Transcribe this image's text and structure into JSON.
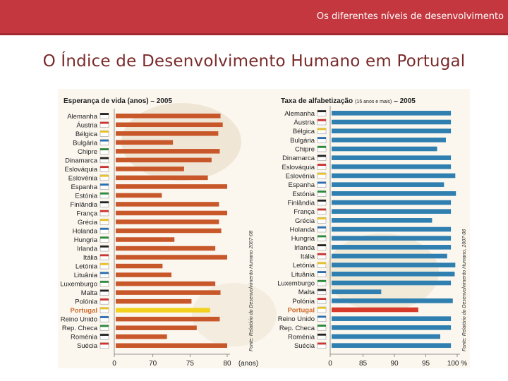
{
  "header": {
    "title": "Os diferentes níveis de desenvolvimento"
  },
  "slide": {
    "title": "O Índice de Desenvolvimento Humano em Portugal"
  },
  "colors": {
    "header_bg": "#c4373f",
    "title_text": "#7a2a2a",
    "life_bar": "#c8582a",
    "portugal_bar_left": "#f2d21e",
    "literacy_bar": "#2f7fb0",
    "portugal_bar_right": "#d63a2a",
    "portugal_label": "#d06a2a"
  },
  "chart_data": [
    {
      "type": "bar",
      "orientation": "horizontal",
      "title": "Esperança de vida (anos) – 2005",
      "categories": [
        "Alemanha",
        "Áustria",
        "Bélgica",
        "Bulgária",
        "Chipre",
        "Dinamarca",
        "Eslováquia",
        "Eslovénia",
        "Espanha",
        "Estónia",
        "Finlândia",
        "França",
        "Grécia",
        "Holanda",
        "Hungria",
        "Irlanda",
        "Itália",
        "Letónia",
        "Lituânia",
        "Luxemburgo",
        "Malta",
        "Polónia",
        "Portugal",
        "Reino Unido",
        "Rep. Checa",
        "Roménia",
        "Suécia"
      ],
      "values": [
        79.1,
        79.4,
        78.8,
        72.7,
        79.0,
        77.9,
        74.2,
        77.4,
        80.5,
        71.2,
        78.9,
        80.2,
        78.9,
        79.2,
        72.9,
        78.4,
        80.3,
        71.3,
        72.5,
        78.4,
        79.1,
        75.2,
        77.7,
        79.0,
        75.9,
        71.9,
        80.5
      ],
      "highlight": "Portugal",
      "xlim": [
        65,
        80
      ],
      "xticks": [
        "0",
        "70",
        "75",
        "80"
      ],
      "xlabel": "(anos)",
      "source": "Fonte: Relatório do Desenvolvimento Humano 2007-08"
    },
    {
      "type": "bar",
      "orientation": "horizontal",
      "title": "Taxa de alfabetização",
      "title_note": "(15 anos e mais)",
      "title_year": "– 2005",
      "categories": [
        "Alemanha",
        "Áustria",
        "Bélgica",
        "Bulgária",
        "Chipre",
        "Dinamarca",
        "Eslováquia",
        "Eslovénia",
        "Espanha",
        "Estónia",
        "Finlândia",
        "França",
        "Grécia",
        "Holanda",
        "Hungria",
        "Irlanda",
        "Itália",
        "Letónia",
        "Lituânia",
        "Luxemburgo",
        "Malta",
        "Polónia",
        "Portugal",
        "Reino Unido",
        "Rep. Checa",
        "Roménia",
        "Suécia"
      ],
      "values": [
        99,
        99,
        99,
        98.2,
        96.8,
        99,
        99,
        99.7,
        97.9,
        99.8,
        99,
        99,
        96,
        99,
        99,
        99,
        98.4,
        99.7,
        99.6,
        99,
        87.9,
        99.3,
        93.8,
        99,
        99,
        97.3,
        99
      ],
      "highlight": "Portugal",
      "xlim": [
        80,
        100
      ],
      "xticks": [
        "0",
        "85",
        "90",
        "95",
        "100 %"
      ],
      "source": "Fonte: Relatório do Desenvolvimento Humano, 2007-08"
    }
  ]
}
